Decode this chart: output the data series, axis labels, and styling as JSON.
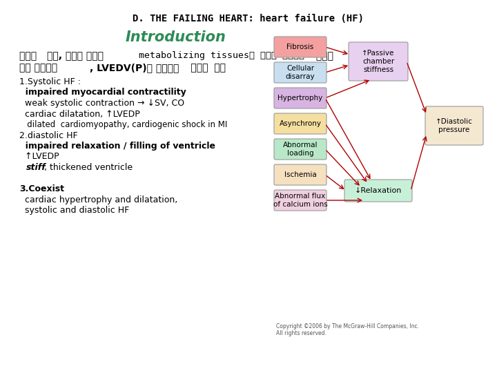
{
  "title": "D. THE FAILING HEART: heart failure (HF)",
  "subtitle": "Introduction",
  "subtitle_color": "#2e8b57",
  "bg_color": "#ffffff",
  "text_block": [
    {
      "text": "1.Systolic HF :",
      "bold": false,
      "size": 9,
      "stiff_bold": false
    },
    {
      "text": "  impaired myocardial contractility",
      "bold": true,
      "size": 9,
      "stiff_bold": false
    },
    {
      "text": "  weak systolic contraction → ↓SV, CO",
      "bold": false,
      "size": 9,
      "stiff_bold": false
    },
    {
      "text": "  cardiac dilatation, ↑LVEDP",
      "bold": false,
      "size": 9,
      "stiff_bold": false
    },
    {
      "text": "   dilated  cardiomyopathy, cardiogenic shock in MI",
      "bold": false,
      "size": 8.5,
      "stiff_bold": false
    },
    {
      "text": "2.diastolic HF",
      "bold": false,
      "size": 9,
      "stiff_bold": false
    },
    {
      "text": "  impaired relaxation / filling of ventricle",
      "bold": true,
      "size": 9,
      "stiff_bold": false
    },
    {
      "text": "  ↑LVEDP",
      "bold": false,
      "size": 9,
      "stiff_bold": false
    },
    {
      "text": "  stiff, thickened ventricle",
      "bold": false,
      "size": 9,
      "stiff_bold": true
    },
    {
      "text": "",
      "bold": false,
      "size": 9,
      "stiff_bold": false
    },
    {
      "text": "3.Coexist",
      "bold": true,
      "size": 9,
      "stiff_bold": false
    },
    {
      "text": "  cardiac hypertrophy and dilatation,",
      "bold": false,
      "size": 9,
      "stiff_bold": false
    },
    {
      "text": "  systolic and diastolic HF",
      "bold": false,
      "size": 9,
      "stiff_bold": false
    }
  ],
  "diagram": {
    "left_boxes": [
      {
        "label": "Fibrosis",
        "color": "#f4a0a0"
      },
      {
        "label": "Cellular\ndisarray",
        "color": "#c8dff0"
      },
      {
        "label": "Hypertrophy",
        "color": "#d8b4e2"
      },
      {
        "label": "Asynchrony",
        "color": "#f5dfa0"
      },
      {
        "label": "Abnormal\nloading",
        "color": "#b8e8c8"
      },
      {
        "label": "Ischemia",
        "color": "#f5e0c0"
      },
      {
        "label": "Abnormal flux\nof calcium ions",
        "color": "#f0d0e0"
      }
    ],
    "mid_top_box": {
      "label": "↑Passive\nchamber\nstiffness",
      "color": "#e8d0f0"
    },
    "mid_bot_box": {
      "label": "↓Relaxation",
      "color": "#c8f0d8"
    },
    "right_box": {
      "label": "↑Diastolic\npressure",
      "color": "#f5e8d0"
    },
    "arrow_color": "#b00000"
  },
  "copyright": "Copyright ©2006 by The McGraw-Hill Companies, Inc.\nAll rights reserved."
}
